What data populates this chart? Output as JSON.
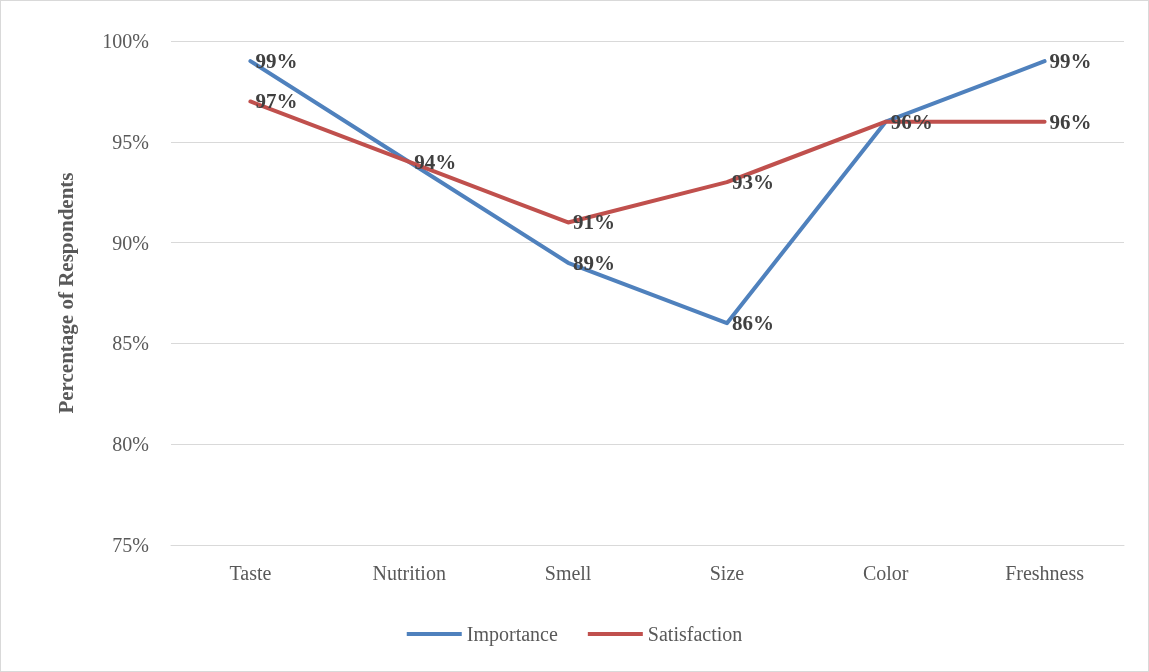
{
  "chart_data": {
    "type": "line",
    "ylabel": "Percentage of Respondents",
    "categories": [
      "Taste",
      "Nutrition",
      "Smell",
      "Size",
      "Color",
      "Freshness"
    ],
    "series": [
      {
        "name": "Importance",
        "color": "#4f81bd",
        "values": [
          99,
          94,
          89,
          86,
          96,
          99
        ],
        "value_labels": [
          "99%",
          "94%",
          "89%",
          "86%",
          null,
          "99%"
        ]
      },
      {
        "name": "Satisfaction",
        "color": "#c0504d",
        "values": [
          97,
          94,
          91,
          93,
          96,
          96
        ],
        "value_labels": [
          "97%",
          null,
          "91%",
          "93%",
          "96%",
          "96%"
        ]
      }
    ],
    "ylim": [
      75,
      100
    ],
    "yticks": [
      {
        "value": 75,
        "label": "75%"
      },
      {
        "value": 80,
        "label": "80%"
      },
      {
        "value": 85,
        "label": "85%"
      },
      {
        "value": 90,
        "label": "90%"
      },
      {
        "value": 95,
        "label": "95%"
      },
      {
        "value": 100,
        "label": "100%"
      }
    ],
    "grid": "y",
    "legend": "bottom",
    "marker": "none",
    "line_style": "solid"
  }
}
